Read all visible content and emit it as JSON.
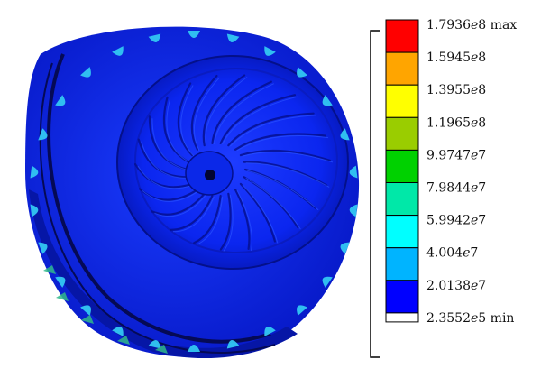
{
  "legend": {
    "labels": [
      {
        "mant": "1.7936",
        "e": "e",
        "exp": "8",
        "suffix": " max"
      },
      {
        "mant": "1.5945",
        "e": "e",
        "exp": "8",
        "suffix": ""
      },
      {
        "mant": "1.3955",
        "e": "e",
        "exp": "8",
        "suffix": ""
      },
      {
        "mant": "1.1965",
        "e": "e",
        "exp": "8",
        "suffix": ""
      },
      {
        "mant": "9.9747",
        "e": "e",
        "exp": "7",
        "suffix": ""
      },
      {
        "mant": "7.9844",
        "e": "e",
        "exp": "7",
        "suffix": ""
      },
      {
        "mant": "5.9942",
        "e": "e",
        "exp": "7",
        "suffix": ""
      },
      {
        "mant": "4.004",
        "e": "e",
        "exp": "7",
        "suffix": ""
      },
      {
        "mant": "2.0138",
        "e": "e",
        "exp": "7",
        "suffix": ""
      },
      {
        "mant": "2.3552",
        "e": "e",
        "exp": "5",
        "suffix": " min"
      }
    ],
    "colors": [
      "#ff0000",
      "#ffa500",
      "#ffff00",
      "#9acd00",
      "#00d100",
      "#00e8a8",
      "#00ffff",
      "#00b4ff",
      "#0000ff",
      "#ffffff"
    ]
  },
  "model": {
    "colors": {
      "base": "#0a2bf0",
      "dark": "#06108f",
      "hub": "#1532f6",
      "peak": "#33c7f2",
      "green": "#30b88a"
    }
  }
}
